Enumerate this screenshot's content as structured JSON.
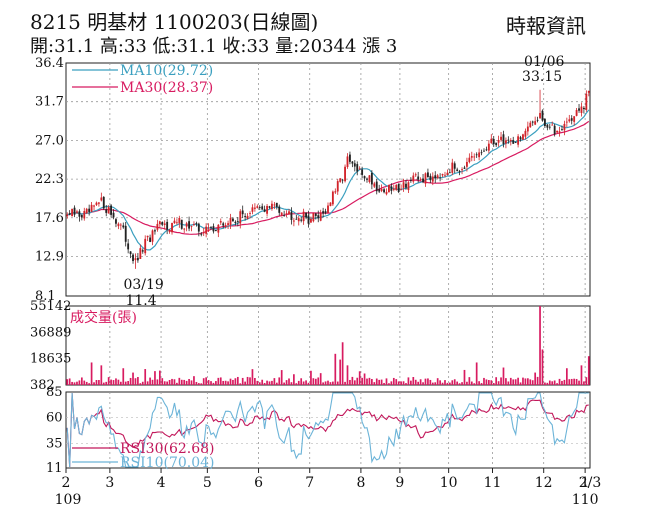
{
  "header": {
    "title": "8215 明基材 1100203(日線圖)",
    "source": "時報資訊",
    "quote": "開:31.1 高:33 低:31.1 收:33 量:20344 漲 3"
  },
  "colors": {
    "up": "#d2232a",
    "down": "#222222",
    "ma10": "#3a9fbf",
    "ma30": "#d81b60",
    "volume": "#d81b60",
    "rsi30": "#c2185b",
    "rsi10": "#6cb4d8"
  },
  "chart_data": [
    {
      "type": "candlestick",
      "title": "",
      "y_ticks": [
        "36.4",
        "31.7",
        "27.0",
        "22.3",
        "17.6",
        "12.9",
        "8.1"
      ],
      "ylim": [
        8.1,
        36.4
      ],
      "legend": [
        {
          "name": "MA10(29.72)",
          "color": "#3a9fbf"
        },
        {
          "name": "MA30(28.37)",
          "color": "#d81b60"
        }
      ],
      "annotations": [
        {
          "date": "01/06",
          "value": "33.15"
        },
        {
          "date": "03/19",
          "value": "11.4"
        }
      ],
      "anchors": [
        {
          "i": 0,
          "c": 18.0
        },
        {
          "i": 8,
          "c": 18.0
        },
        {
          "i": 14,
          "c": 19.5
        },
        {
          "i": 18,
          "c": 18.2
        },
        {
          "i": 22,
          "c": 16.5
        },
        {
          "i": 26,
          "c": 13.5
        },
        {
          "i": 28,
          "c": 12.0
        },
        {
          "i": 32,
          "c": 14.5
        },
        {
          "i": 38,
          "c": 16.5
        },
        {
          "i": 46,
          "c": 17.0
        },
        {
          "i": 56,
          "c": 16.0
        },
        {
          "i": 66,
          "c": 17.0
        },
        {
          "i": 76,
          "c": 18.5
        },
        {
          "i": 86,
          "c": 19.0
        },
        {
          "i": 92,
          "c": 18.0
        },
        {
          "i": 100,
          "c": 17.5
        },
        {
          "i": 106,
          "c": 18.5
        },
        {
          "i": 112,
          "c": 22.0
        },
        {
          "i": 115,
          "c": 24.5
        },
        {
          "i": 120,
          "c": 23.0
        },
        {
          "i": 124,
          "c": 22.5
        },
        {
          "i": 128,
          "c": 21.0
        },
        {
          "i": 134,
          "c": 21.0
        },
        {
          "i": 140,
          "c": 22.0
        },
        {
          "i": 148,
          "c": 22.5
        },
        {
          "i": 156,
          "c": 23.5
        },
        {
          "i": 164,
          "c": 24.0
        },
        {
          "i": 170,
          "c": 25.5
        },
        {
          "i": 176,
          "c": 27.0
        },
        {
          "i": 184,
          "c": 27.0
        },
        {
          "i": 190,
          "c": 28.5
        },
        {
          "i": 194,
          "c": 30.5
        },
        {
          "i": 196,
          "c": 29.0
        },
        {
          "i": 200,
          "c": 28.0
        },
        {
          "i": 206,
          "c": 29.5
        },
        {
          "i": 212,
          "c": 31.0
        },
        {
          "i": 214,
          "c": 33.0
        }
      ]
    },
    {
      "type": "bar",
      "title": "成交量(張)",
      "y_ticks": [
        "55142",
        "36889",
        "18635",
        "382"
      ],
      "ylim": [
        382,
        55142
      ]
    },
    {
      "type": "line",
      "y_ticks": [
        "85",
        "60",
        "35",
        "11"
      ],
      "ylim": [
        11,
        85
      ],
      "legend": [
        {
          "name": "RSI30(62.68)",
          "color": "#c2185b"
        },
        {
          "name": "RSI10(70.04)",
          "color": "#6cb4d8"
        }
      ]
    }
  ],
  "x_axis": {
    "labels": [
      "2",
      "3",
      "4",
      "5",
      "6",
      "7",
      "8",
      "9",
      "10",
      "11",
      "12",
      "1",
      "2/3"
    ],
    "year_labels": [
      "109",
      "110"
    ]
  }
}
